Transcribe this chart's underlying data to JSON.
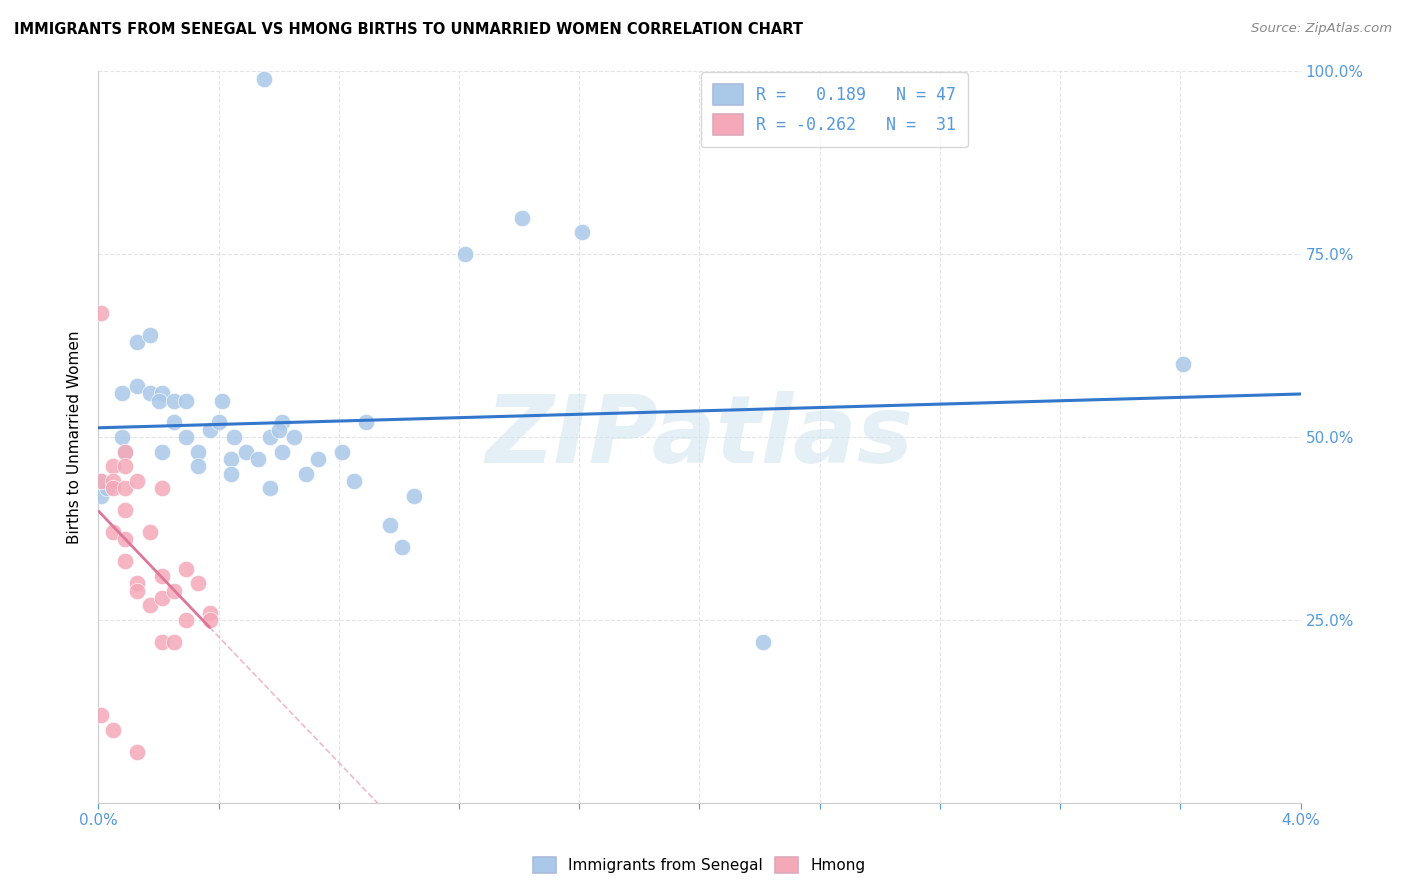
{
  "title": "IMMIGRANTS FROM SENEGAL VS HMONG BIRTHS TO UNMARRIED WOMEN CORRELATION CHART",
  "source": "Source: ZipAtlas.com",
  "ylabel": "Births to Unmarried Women",
  "xmin": 0.0,
  "xmax": 4.0,
  "ymin": 0.0,
  "ymax": 100.0,
  "yticks": [
    0,
    25,
    50,
    75,
    100
  ],
  "xticks": [
    0.0,
    0.4,
    0.8,
    1.2,
    1.6,
    2.0,
    2.4,
    2.8,
    3.2,
    3.6,
    4.0
  ],
  "blue_R": 0.189,
  "blue_N": 47,
  "pink_R": -0.262,
  "pink_N": 31,
  "legend_blue_label_R": "R =",
  "legend_blue_label_val": "0.189",
  "legend_blue_label_N": "N = 47",
  "legend_pink_label_R": "R =",
  "legend_pink_label_val": "-0.262",
  "legend_pink_label_N": "N =  31",
  "blue_scatter_color": "#aac8e8",
  "pink_scatter_color": "#f4a8b8",
  "blue_line_color": "#3377cc",
  "pink_line_color": "#dd7799",
  "label_color": "#5599dd",
  "watermark_text": "ZIPatlas",
  "watermark_color": "#d0e4f0",
  "blue_label": "Immigrants from Senegal",
  "pink_label": "Hmong",
  "blue_scatter_x": [
    0.55,
    0.01,
    0.01,
    0.08,
    0.08,
    0.09,
    0.03,
    0.13,
    0.13,
    0.17,
    0.17,
    0.21,
    0.2,
    0.21,
    0.25,
    0.25,
    0.29,
    0.29,
    0.33,
    0.33,
    0.37,
    0.41,
    0.4,
    0.45,
    0.44,
    0.44,
    0.49,
    0.53,
    0.57,
    0.57,
    0.61,
    0.6,
    0.61,
    0.65,
    0.69,
    0.73,
    0.81,
    0.85,
    0.89,
    0.97,
    1.01,
    1.05,
    1.22,
    1.41,
    1.61,
    2.21,
    3.61
  ],
  "blue_scatter_y": [
    99,
    44,
    42,
    56,
    50,
    48,
    43,
    63,
    57,
    64,
    56,
    56,
    55,
    48,
    55,
    52,
    55,
    50,
    48,
    46,
    51,
    55,
    52,
    50,
    47,
    45,
    48,
    47,
    50,
    43,
    52,
    51,
    48,
    50,
    45,
    47,
    48,
    44,
    52,
    38,
    35,
    42,
    75,
    80,
    78,
    22,
    60
  ],
  "pink_scatter_x": [
    0.01,
    0.01,
    0.01,
    0.05,
    0.05,
    0.05,
    0.05,
    0.05,
    0.09,
    0.09,
    0.09,
    0.09,
    0.09,
    0.09,
    0.13,
    0.13,
    0.13,
    0.13,
    0.17,
    0.17,
    0.21,
    0.21,
    0.21,
    0.21,
    0.25,
    0.25,
    0.29,
    0.29,
    0.33,
    0.37,
    0.37
  ],
  "pink_scatter_y": [
    67,
    44,
    12,
    46,
    44,
    43,
    37,
    10,
    48,
    46,
    43,
    40,
    36,
    33,
    44,
    30,
    29,
    7,
    37,
    27,
    43,
    31,
    28,
    22,
    29,
    22,
    32,
    25,
    30,
    26,
    25
  ]
}
